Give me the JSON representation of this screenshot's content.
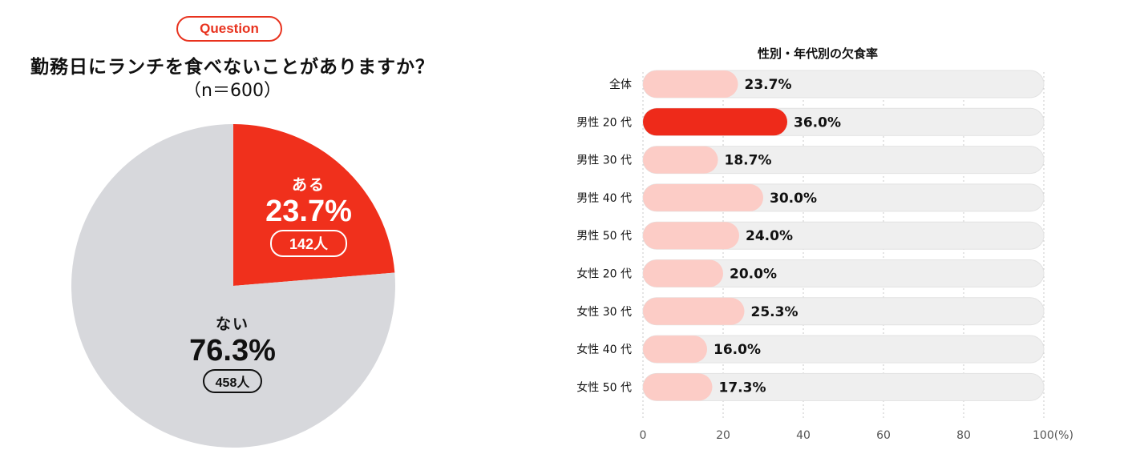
{
  "question": {
    "badge": "Question",
    "title": "勤務日にランチを食べないことがありますか？",
    "sample": "（n＝600）"
  },
  "pie": {
    "slices": [
      {
        "label": "ある",
        "percent": 23.7,
        "pct_text": "23.7%",
        "count": "142人",
        "color": "#f0301c"
      },
      {
        "label": "ない",
        "percent": 76.3,
        "pct_text": "76.3%",
        "count": "458人",
        "color": "#d7d8dc"
      }
    ]
  },
  "chart_data": {
    "type": "bar",
    "orientation": "horizontal",
    "title": "性別・年代別の欠食率",
    "categories": [
      "全体",
      "男性 20 代",
      "男性 30 代",
      "男性 40 代",
      "男性 50 代",
      "女性 20 代",
      "女性 30 代",
      "女性 40 代",
      "女性 50 代"
    ],
    "values": [
      23.7,
      36.0,
      18.7,
      30.0,
      24.0,
      20.0,
      25.3,
      16.0,
      17.3
    ],
    "value_labels": [
      "23.7%",
      "36.0%",
      "18.7%",
      "30.0%",
      "24.0%",
      "20.0%",
      "25.3%",
      "16.0%",
      "17.3%"
    ],
    "highlight_index": 1,
    "xlim": [
      0,
      100
    ],
    "xticks": [
      "0",
      "20",
      "40",
      "60",
      "80",
      "100(%)"
    ],
    "colors": {
      "bar": "#fcccc6",
      "highlight": "#ee2a1a",
      "track": "#efefef",
      "track_border": "#e2e2e2"
    },
    "grid": true
  }
}
